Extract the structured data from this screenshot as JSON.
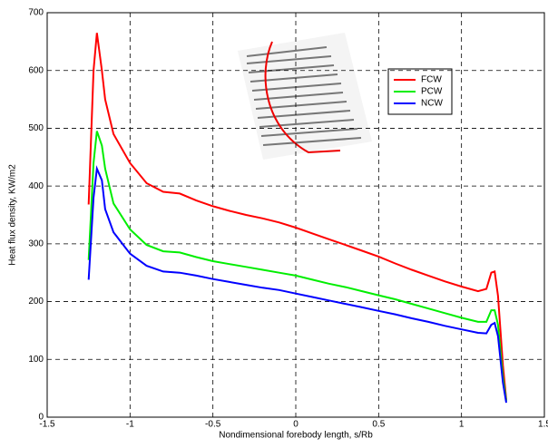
{
  "chart_data": {
    "type": "line",
    "xlabel": "Nondimensional forebody length, s/Rb",
    "ylabel": "Heat flux density, KW/m2",
    "x": [
      -1.25,
      -1.22,
      -1.2,
      -1.17,
      -1.15,
      -1.1,
      -1.0,
      -0.9,
      -0.8,
      -0.7,
      -0.6,
      -0.5,
      -0.4,
      -0.3,
      -0.2,
      -0.1,
      0,
      0.1,
      0.2,
      0.3,
      0.4,
      0.5,
      0.6,
      0.7,
      0.8,
      0.9,
      1.0,
      1.1,
      1.15,
      1.18,
      1.2,
      1.22,
      1.25,
      1.27
    ],
    "series": [
      {
        "name": "FCW",
        "color": "#ff0000",
        "values": [
          368,
          600,
          665,
          600,
          550,
          490,
          440,
          405,
          390,
          387,
          375,
          365,
          357,
          350,
          344,
          337,
          328,
          318,
          308,
          298,
          288,
          278,
          266,
          255,
          245,
          235,
          226,
          218,
          222,
          250,
          252,
          210,
          90,
          30
        ]
      },
      {
        "name": "PCW",
        "color": "#00ee00",
        "values": [
          272,
          440,
          495,
          470,
          430,
          370,
          325,
          298,
          287,
          285,
          277,
          270,
          265,
          260,
          255,
          250,
          245,
          238,
          231,
          225,
          218,
          211,
          204,
          196,
          188,
          180,
          172,
          165,
          165,
          185,
          185,
          160,
          70,
          28
        ]
      },
      {
        "name": "NCW",
        "color": "#0000ff",
        "values": [
          238,
          380,
          430,
          410,
          360,
          320,
          283,
          262,
          252,
          250,
          245,
          239,
          234,
          229,
          224,
          220,
          214,
          208,
          202,
          196,
          190,
          184,
          178,
          171,
          165,
          158,
          152,
          146,
          145,
          160,
          163,
          140,
          60,
          25
        ]
      }
    ],
    "xlim": [
      -1.5,
      1.5
    ],
    "xticks": [
      -1.5,
      -1,
      -0.5,
      0,
      0.5,
      1,
      1.5
    ],
    "ylim": [
      0,
      700
    ],
    "yticks": [
      0,
      100,
      200,
      300,
      400,
      500,
      600,
      700
    ],
    "grid": true,
    "legend": "upper right"
  }
}
